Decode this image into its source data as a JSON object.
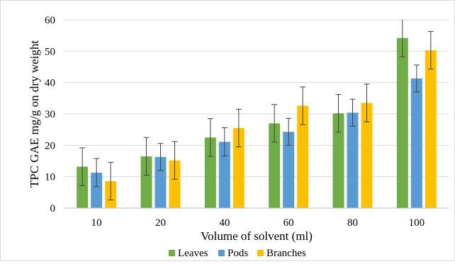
{
  "chart_data": {
    "type": "bar",
    "title": "",
    "xlabel": "Volume of solvent (ml)",
    "ylabel": "TPC GAE mg/g on dry weight",
    "ylim": [
      0,
      60
    ],
    "yticks": [
      0,
      10,
      20,
      30,
      40,
      50,
      60
    ],
    "categories": [
      "10",
      "20",
      "40",
      "60",
      "80",
      "100"
    ],
    "grid": "horizontal",
    "legend_position": "bottom",
    "error_bars": true,
    "series": [
      {
        "name": "Leaves",
        "color": "#70AD47",
        "values": [
          13.2,
          16.5,
          22.5,
          27.0,
          30.2,
          54.2
        ],
        "errors": [
          6.0,
          6.0,
          6.0,
          6.0,
          6.0,
          6.0
        ]
      },
      {
        "name": "Pods",
        "color": "#5B9BD5",
        "values": [
          11.3,
          16.3,
          21.1,
          24.3,
          30.4,
          41.3
        ],
        "errors": [
          4.5,
          4.3,
          4.5,
          4.3,
          4.3,
          4.3
        ]
      },
      {
        "name": "Branches",
        "color": "#FFC000",
        "values": [
          8.6,
          15.2,
          25.5,
          32.6,
          33.5,
          50.3
        ],
        "errors": [
          6.0,
          6.0,
          6.0,
          6.0,
          6.0,
          6.0
        ]
      }
    ]
  }
}
